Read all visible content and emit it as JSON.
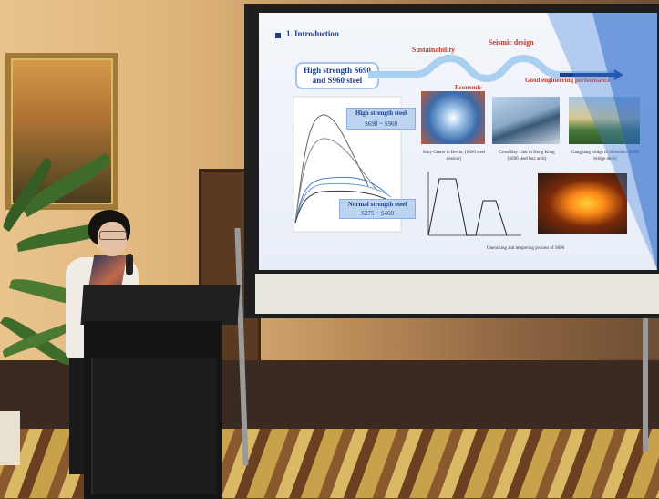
{
  "slide": {
    "section_title": "1. Introduction",
    "intro_box": "High strength S690 and S960 steel",
    "path_labels": {
      "sustainability": "Sustainability",
      "seismic": "Seismic design",
      "economic": "Economic",
      "good_engineering": "Good engineering performance"
    },
    "chart_labels": {
      "high_strength_title": "High strength steel",
      "high_strength_range": "S690 ~ S960",
      "normal_strength_title": "Normal strength steel",
      "normal_strength_range": "S275 ~ S460"
    },
    "photo_captions": [
      "Sony Center in Berlin, (S690 steel tension)",
      "Cross Bay Link in Hong Kong (S690 steel box arch)",
      "Gangjiang bridge in Shenzhen (S690 bridge deck)"
    ],
    "process_caption": "Quenching and tempering process of S690"
  },
  "colors": {
    "slide_accent": "#3b7fd9",
    "title_blue": "#1f3f8a",
    "path_red": "#c0392b"
  }
}
